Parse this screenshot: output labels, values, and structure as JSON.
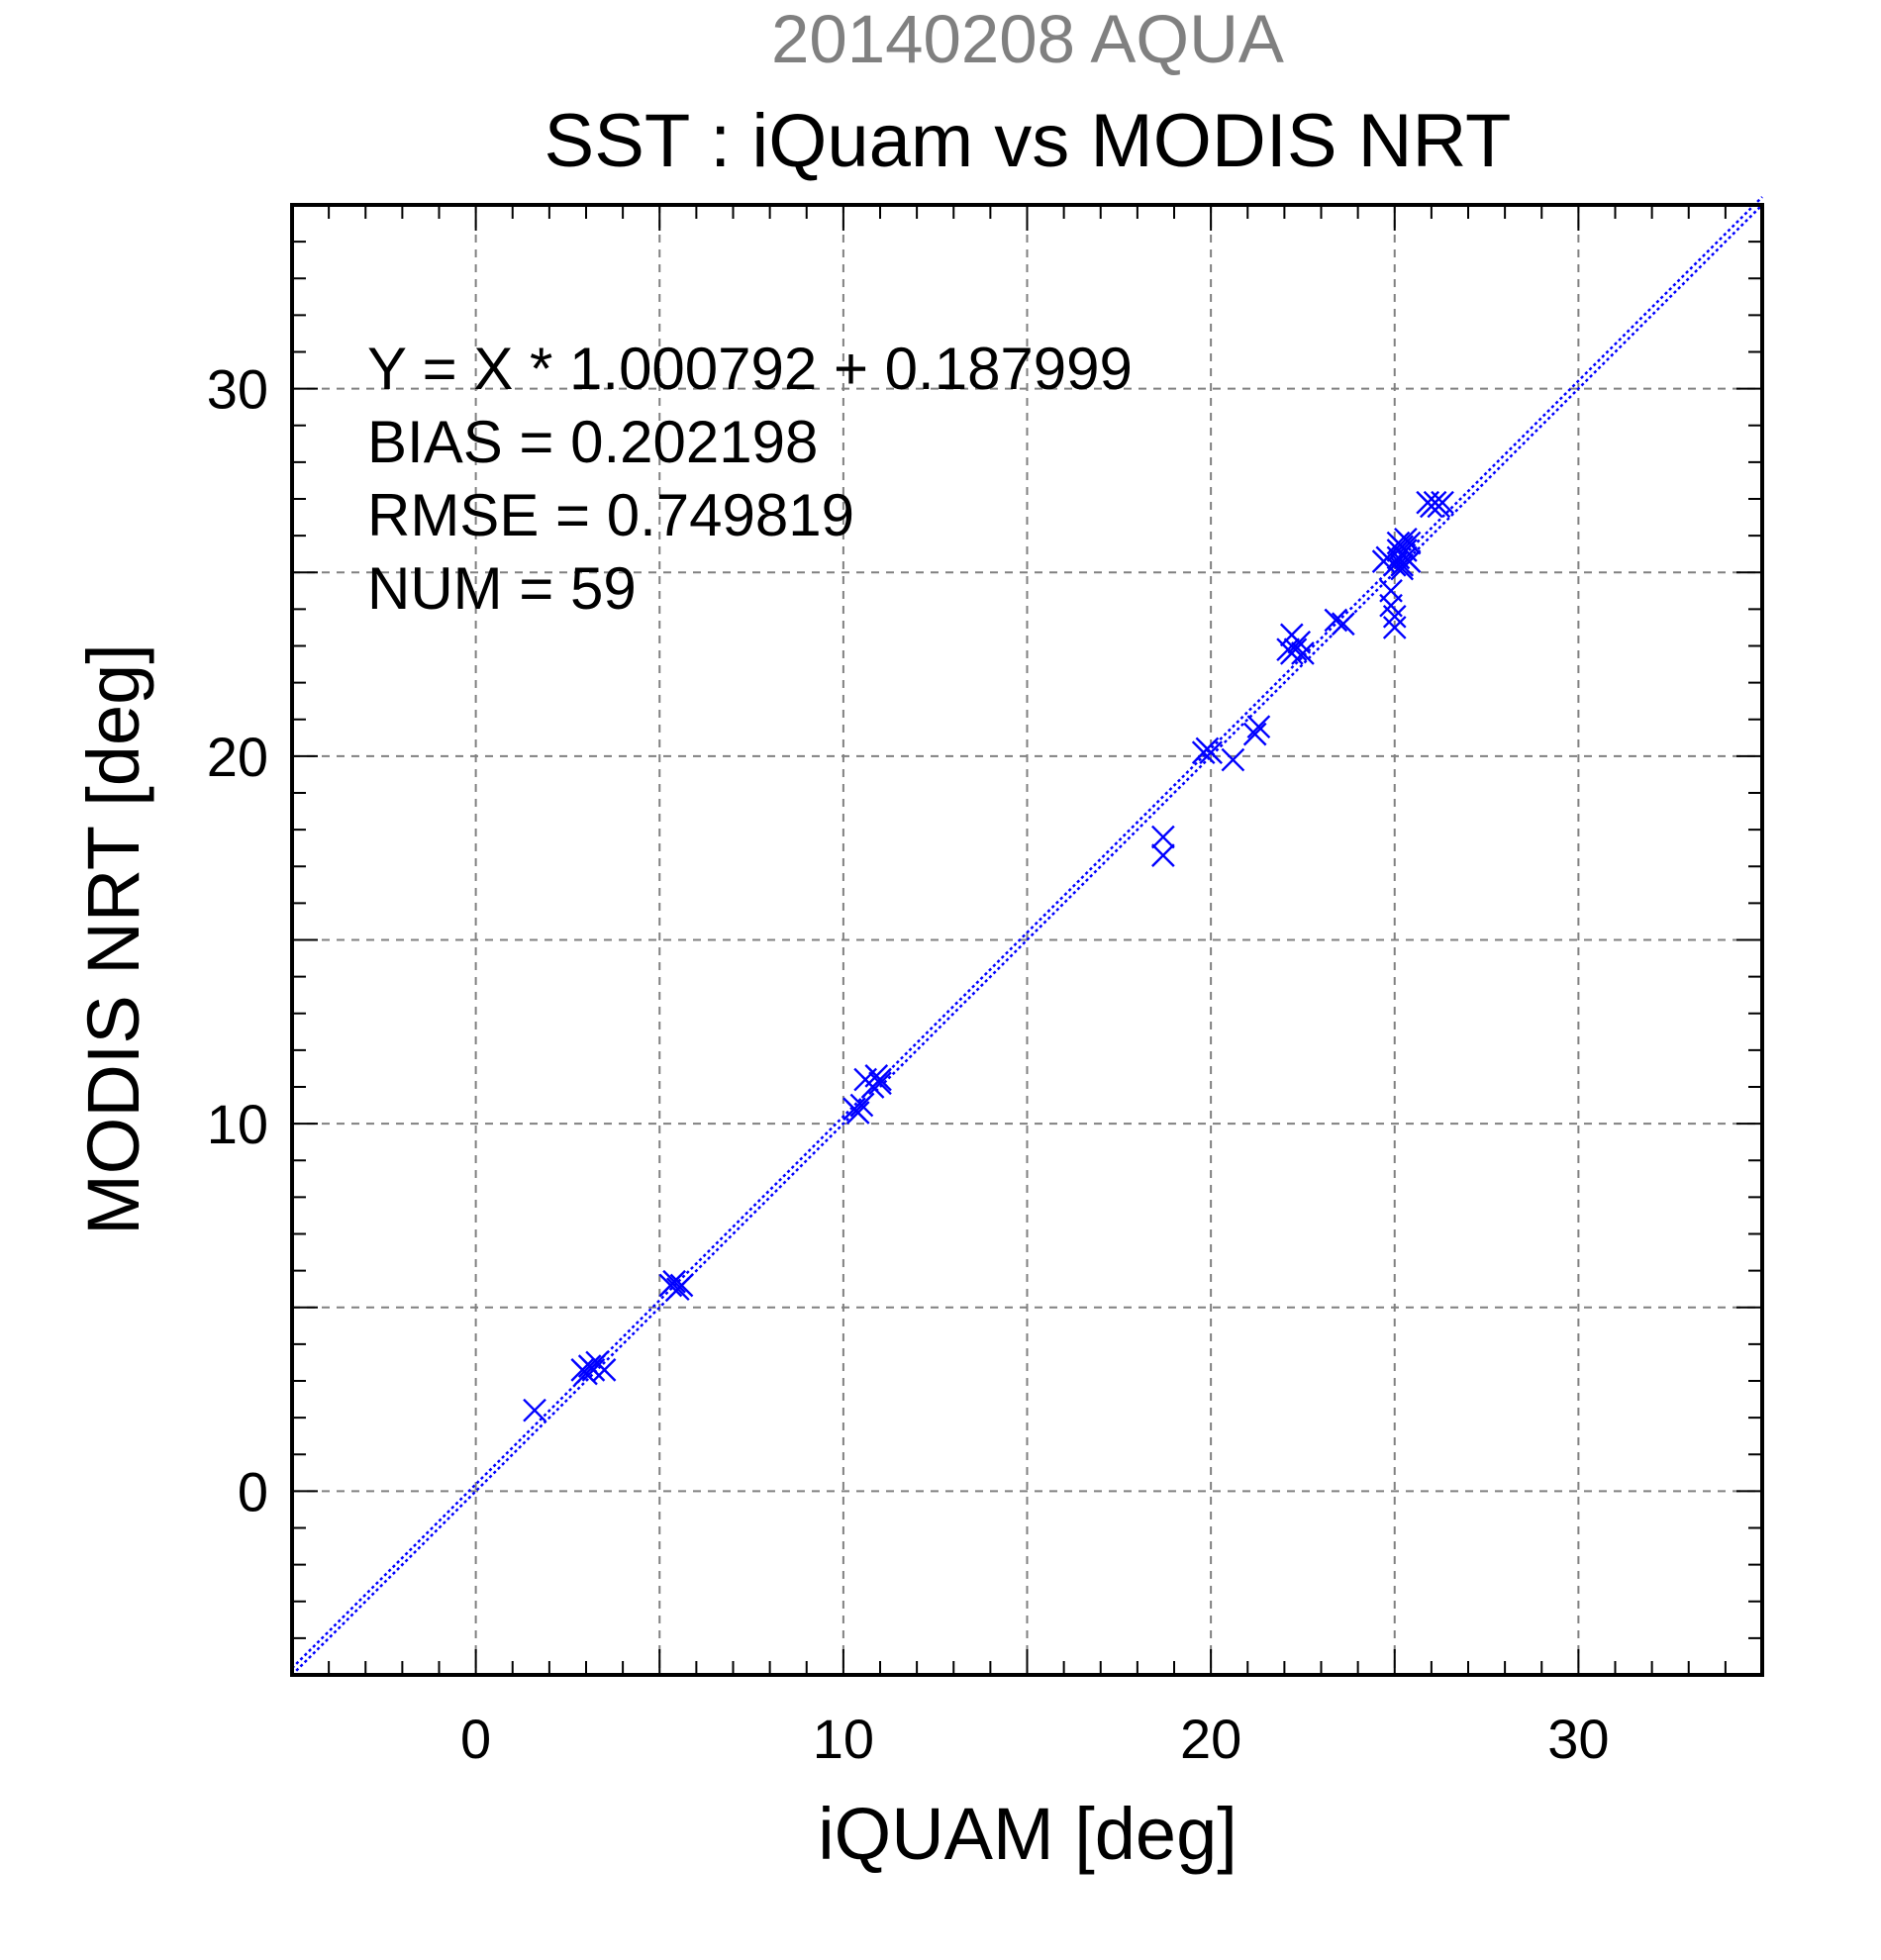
{
  "title_top": "20140208 AQUA",
  "title_main": "SST : iQuam vs MODIS NRT",
  "stats": {
    "regression": "Y = X * 1.000792 + 0.187999",
    "bias": "BIAS = 0.202198",
    "rmse": "RMSE = 0.749819",
    "num": "NUM = 59"
  },
  "colors": {
    "marker": "#0000ff",
    "grid": "#808080",
    "axis": "#000000"
  },
  "chart_data": {
    "type": "scatter",
    "title": "SST : iQuam vs MODIS NRT",
    "subtitle": "20140208 AQUA",
    "xlabel": "iQUAM [deg]",
    "ylabel": "MODIS NRT [deg]",
    "xlim": [
      -5,
      35
    ],
    "ylim": [
      -5,
      35
    ],
    "xticks": [
      0,
      10,
      20,
      30
    ],
    "yticks": [
      0,
      10,
      20,
      30
    ],
    "x_tick_labels": [
      "0",
      "10",
      "20",
      "30"
    ],
    "y_tick_labels": [
      "0",
      "10",
      "20",
      "30"
    ],
    "grid": true,
    "marker": "x",
    "reference_lines": [
      {
        "kind": "identity",
        "slope": 1.0,
        "intercept": 0.0
      },
      {
        "kind": "regression",
        "slope": 1.000792,
        "intercept": 0.187999
      }
    ],
    "series": [
      {
        "x": [
          1.6,
          2.9,
          3.0,
          3.1,
          3.2,
          3.3,
          3.5,
          5.3,
          5.4,
          5.5,
          5.6,
          10.3,
          10.4,
          10.5,
          10.6,
          10.8,
          10.9,
          11.0,
          18.7,
          18.7,
          19.8,
          19.9,
          20.0,
          20.6,
          21.2,
          21.3,
          22.1,
          22.2,
          22.3,
          22.4,
          22.5,
          23.4,
          23.6,
          24.7,
          24.8,
          24.9,
          24.9,
          25.0,
          25.0,
          25.0,
          25.1,
          25.1,
          25.1,
          25.2,
          25.2,
          25.2,
          25.3,
          25.3,
          25.3,
          25.4,
          25.4,
          25.9,
          26.0,
          26.1,
          26.2,
          26.3,
          25.2,
          22.2,
          11.0
        ],
        "y": [
          2.2,
          3.3,
          3.2,
          3.4,
          3.3,
          3.5,
          3.3,
          5.6,
          5.7,
          5.5,
          5.6,
          10.4,
          10.3,
          10.5,
          11.2,
          11.0,
          11.3,
          11.2,
          17.3,
          17.8,
          20.1,
          20.2,
          20.1,
          19.9,
          20.6,
          20.8,
          22.9,
          23.3,
          22.9,
          23.1,
          22.8,
          23.7,
          23.6,
          25.3,
          25.4,
          24.5,
          24.1,
          23.5,
          23.8,
          25.2,
          25.4,
          25.6,
          25.8,
          25.5,
          25.7,
          25.2,
          25.4,
          25.6,
          25.9,
          25.3,
          25.8,
          26.9,
          26.8,
          26.9,
          26.8,
          26.9,
          25.1,
          22.8,
          11.1
        ]
      }
    ]
  }
}
